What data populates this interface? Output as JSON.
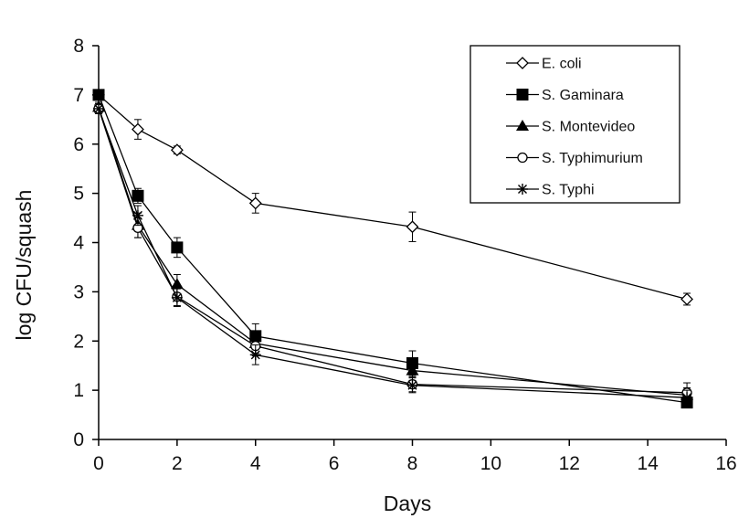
{
  "chart_data": {
    "type": "line",
    "title": "",
    "xlabel": "Days",
    "ylabel": "log CFU/squash",
    "xlim": [
      0,
      16
    ],
    "ylim": [
      0,
      8
    ],
    "xticks": [
      0,
      2,
      4,
      6,
      8,
      10,
      12,
      14,
      16
    ],
    "yticks": [
      0,
      1,
      2,
      3,
      4,
      5,
      6,
      7,
      8
    ],
    "grid": false,
    "legend_position": "top-right",
    "x": [
      0,
      1,
      2,
      4,
      8,
      15
    ],
    "series": [
      {
        "name": "E. coli",
        "marker": "diamond-open",
        "color": "#000000",
        "values": [
          7.0,
          6.3,
          5.88,
          4.8,
          4.32,
          2.85
        ],
        "errors": [
          0.1,
          0.2,
          0.08,
          0.2,
          0.3,
          0.12
        ]
      },
      {
        "name": "S. Gaminara",
        "marker": "square-filled",
        "color": "#000000",
        "values": [
          7.0,
          4.95,
          3.9,
          2.1,
          1.55,
          0.75
        ],
        "errors": [
          0.1,
          0.15,
          0.2,
          0.25,
          0.25,
          0.1
        ]
      },
      {
        "name": "S. Montevideo",
        "marker": "triangle-filled",
        "color": "#000000",
        "values": [
          6.75,
          4.35,
          3.15,
          1.95,
          1.4,
          0.9
        ],
        "errors": [
          0.1,
          0.25,
          0.2,
          0.2,
          0.2,
          0.15
        ]
      },
      {
        "name": "S. Typhimurium",
        "marker": "circle-open",
        "color": "#000000",
        "values": [
          6.72,
          4.3,
          2.9,
          1.9,
          1.12,
          0.95
        ],
        "errors": [
          0.1,
          0.2,
          0.18,
          0.2,
          0.15,
          0.2
        ]
      },
      {
        "name": "S. Typhi",
        "marker": "star",
        "color": "#000000",
        "values": [
          6.72,
          4.55,
          2.88,
          1.72,
          1.1,
          0.85
        ],
        "errors": [
          0.1,
          0.2,
          0.18,
          0.2,
          0.15,
          0.15
        ]
      }
    ]
  }
}
